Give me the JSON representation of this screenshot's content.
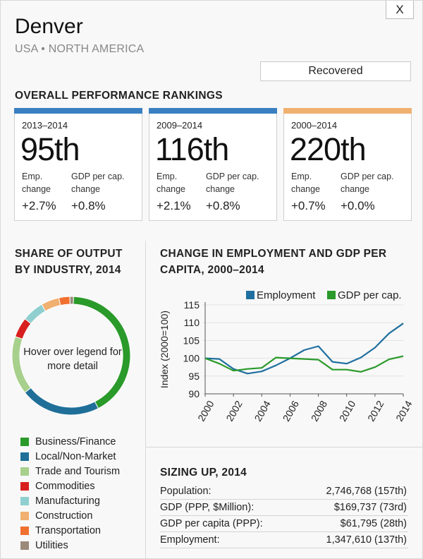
{
  "header": {
    "close_label": "X",
    "city": "Denver",
    "region": "USA • NORTH AMERICA",
    "status": "Recovered"
  },
  "rankings": {
    "title": "OVERALL PERFORMANCE RANKINGS",
    "cards": [
      {
        "period": "2013–2014",
        "rank": "95th",
        "emp_label_1": "Emp.",
        "emp_label_2": "change",
        "gdp_label_1": "GDP per cap.",
        "gdp_label_2": "change",
        "emp_value": "+2.7%",
        "gdp_value": "+0.8%",
        "color": "#3a7fc1"
      },
      {
        "period": "2009–2014",
        "rank": "116th",
        "emp_label_1": "Emp.",
        "emp_label_2": "change",
        "gdp_label_1": "GDP per cap.",
        "gdp_label_2": "change",
        "emp_value": "+2.1%",
        "gdp_value": "+0.8%",
        "color": "#3a7fc1"
      },
      {
        "period": "2000–2014",
        "rank": "220th",
        "emp_label_1": "Emp.",
        "emp_label_2": "change",
        "gdp_label_1": "GDP per cap.",
        "gdp_label_2": "change",
        "emp_value": "+0.7%",
        "gdp_value": "+0.0%",
        "color": "#f0b070"
      }
    ]
  },
  "output": {
    "title_1": "SHARE OF OUTPUT",
    "title_2": "BY INDUSTRY, 2014",
    "hint": "Hover over legend for more detail",
    "legend": [
      {
        "label": "Business/Finance",
        "color": "#2a9a2a",
        "share": 0.42
      },
      {
        "label": "Local/Non-Market",
        "color": "#1f6f99",
        "share": 0.22
      },
      {
        "label": "Trade and Tourism",
        "color": "#a8d08d",
        "share": 0.16
      },
      {
        "label": "Commodities",
        "color": "#d81f1f",
        "share": 0.055
      },
      {
        "label": "Manufacturing",
        "color": "#8fcfcf",
        "share": 0.06
      },
      {
        "label": "Construction",
        "color": "#f0b070",
        "share": 0.05
      },
      {
        "label": "Transportation",
        "color": "#f07030",
        "share": 0.03
      },
      {
        "label": "Utilities",
        "color": "#9a8a7a",
        "share": 0.01
      }
    ]
  },
  "change_chart": {
    "title_1": "CHANGE IN EMPLOYMENT AND GDP PER",
    "title_2": "CAPITA, 2000–2014"
  },
  "chart_data": {
    "type": "line",
    "ylabel": "Index (2000=100)",
    "xlabel": "",
    "x": [
      2000,
      2001,
      2002,
      2003,
      2004,
      2005,
      2006,
      2007,
      2008,
      2009,
      2010,
      2011,
      2012,
      2013,
      2014
    ],
    "x_ticks": [
      "2000",
      "2002",
      "2004",
      "2006",
      "2008",
      "2010",
      "2012",
      "2014"
    ],
    "y_ticks": [
      "115",
      "110",
      "105",
      "100",
      "95",
      "90"
    ],
    "ylim": [
      90,
      115
    ],
    "legend_position": "top",
    "series": [
      {
        "name": "Employment",
        "color": "#1f6fa0",
        "values": [
          100,
          99.8,
          97,
          95.7,
          96.3,
          98,
          100,
          102.3,
          103.4,
          99,
          98.5,
          100.2,
          103,
          107,
          109.8
        ]
      },
      {
        "name": "GDP per cap.",
        "color": "#2a9a2a",
        "values": [
          100,
          98.5,
          96.5,
          97,
          97.3,
          100.2,
          100,
          99.8,
          99.6,
          96.8,
          96.8,
          96.2,
          97.5,
          99.7,
          100.6
        ]
      }
    ]
  },
  "sizing": {
    "title": "SIZING UP, 2014",
    "rows": [
      {
        "label": "Population:",
        "value": "2,746,768 (157th)"
      },
      {
        "label": "GDP (PPP, $Million):",
        "value": "$169,737 (73rd)"
      },
      {
        "label": "GDP per capita (PPP):",
        "value": "$61,795 (28th)"
      },
      {
        "label": "Employment:",
        "value": "1,347,610 (137th)"
      }
    ]
  }
}
